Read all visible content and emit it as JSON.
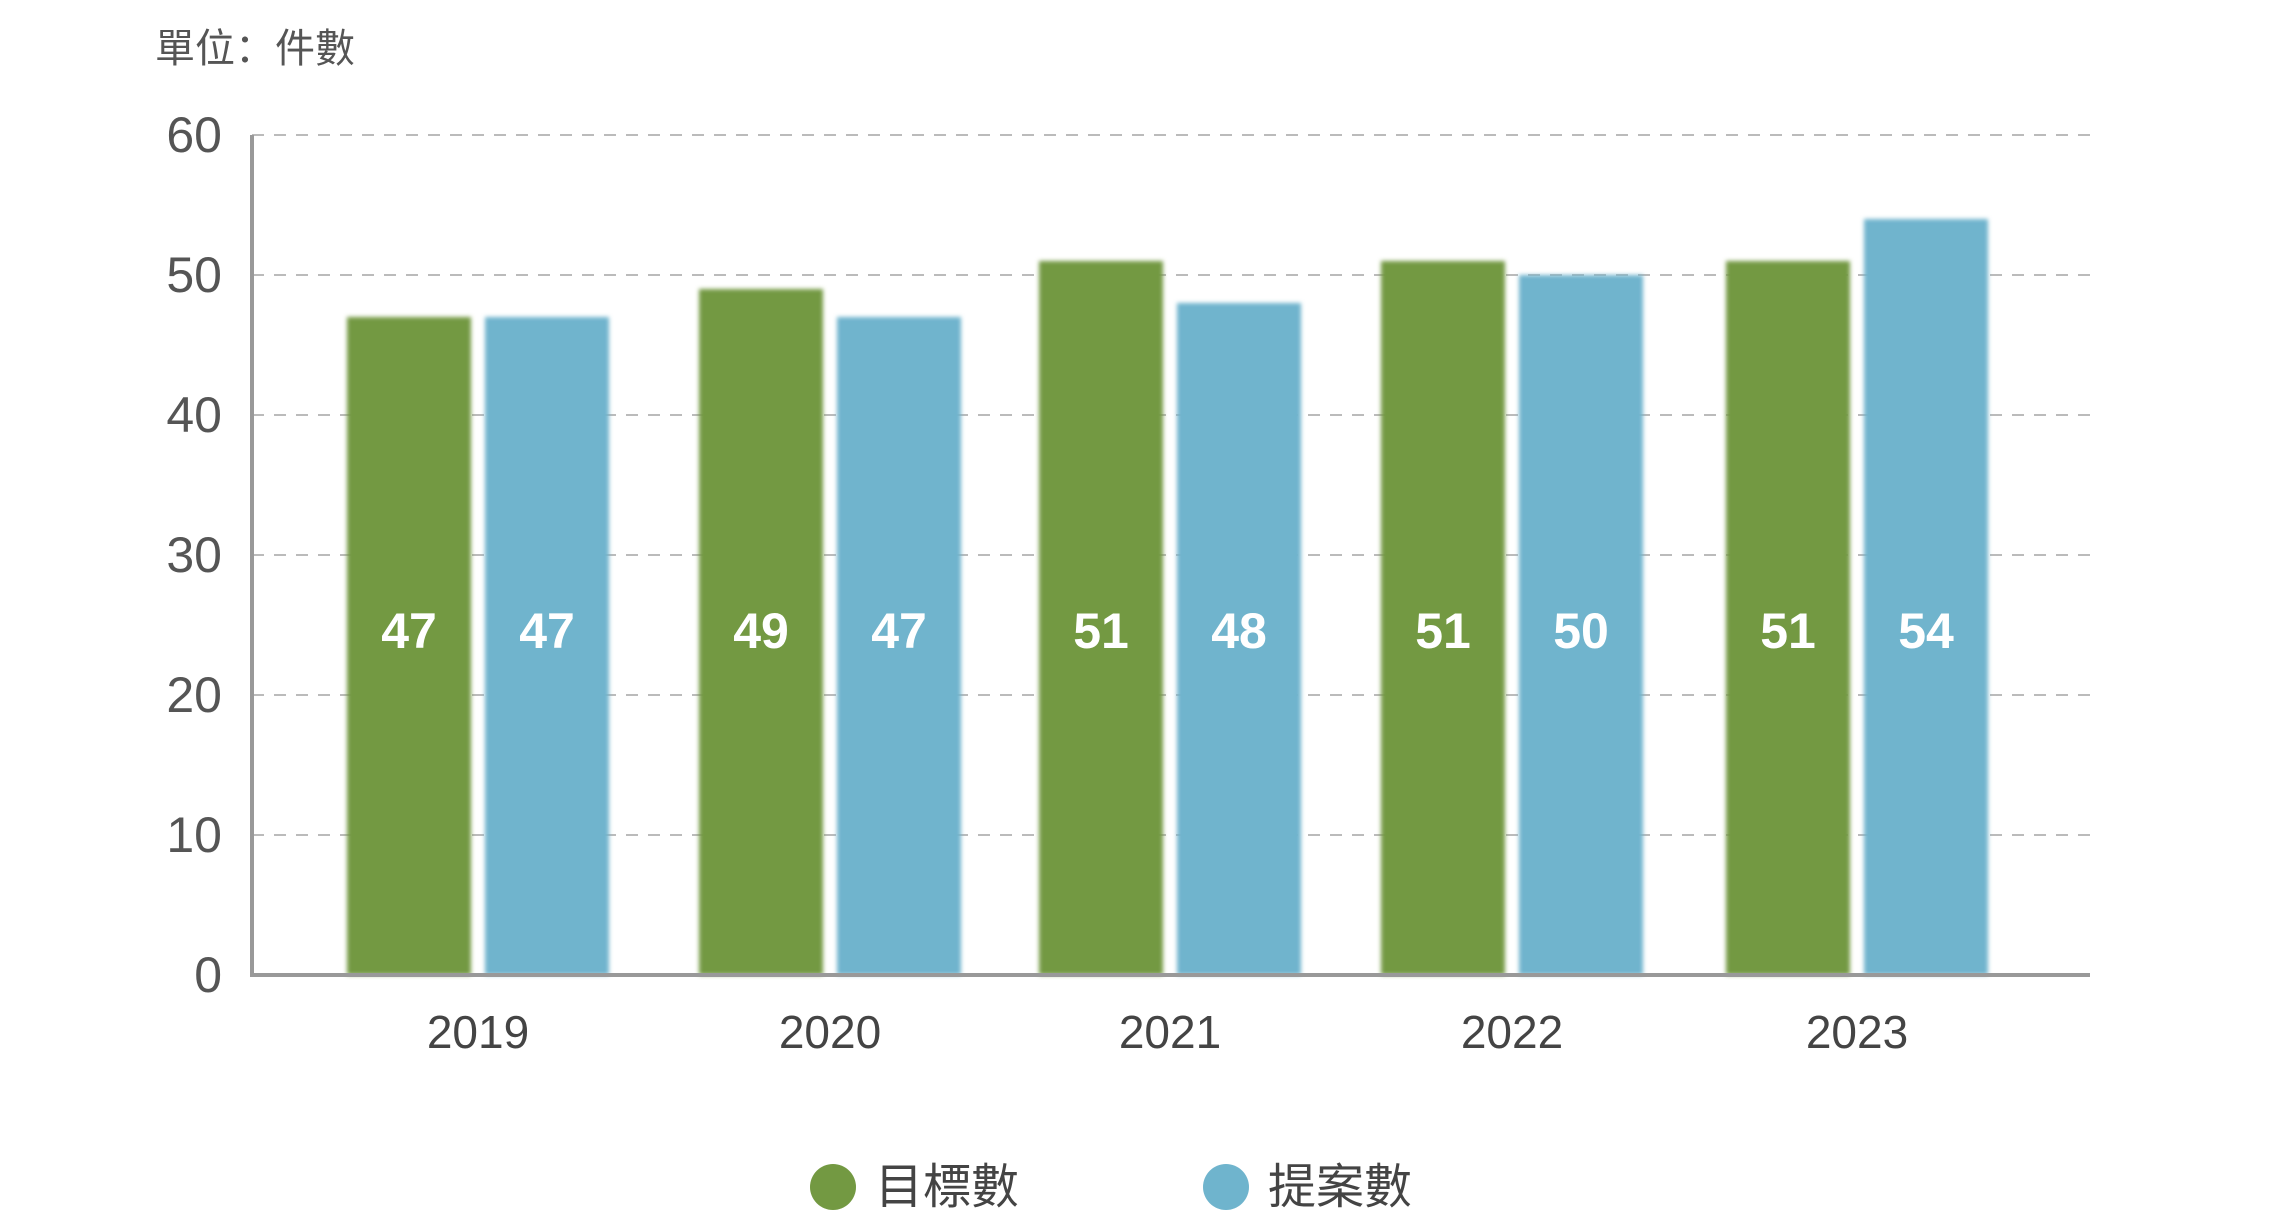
{
  "chart_data": {
    "type": "bar",
    "unit_label": "單位：件數",
    "categories": [
      "2019",
      "2020",
      "2021",
      "2022",
      "2023"
    ],
    "series": [
      {
        "name": "目標數",
        "color": "#739942",
        "values": [
          47,
          49,
          51,
          51,
          51
        ]
      },
      {
        "name": "提案數",
        "color": "#6fb4cd",
        "values": [
          47,
          47,
          48,
          50,
          54
        ]
      }
    ],
    "ylim": [
      0,
      60
    ],
    "yticks": [
      0,
      10,
      20,
      30,
      40,
      50,
      60
    ],
    "grid": true,
    "grid_style": "dashed",
    "legend_position": "bottom-center",
    "data_labels": true
  }
}
